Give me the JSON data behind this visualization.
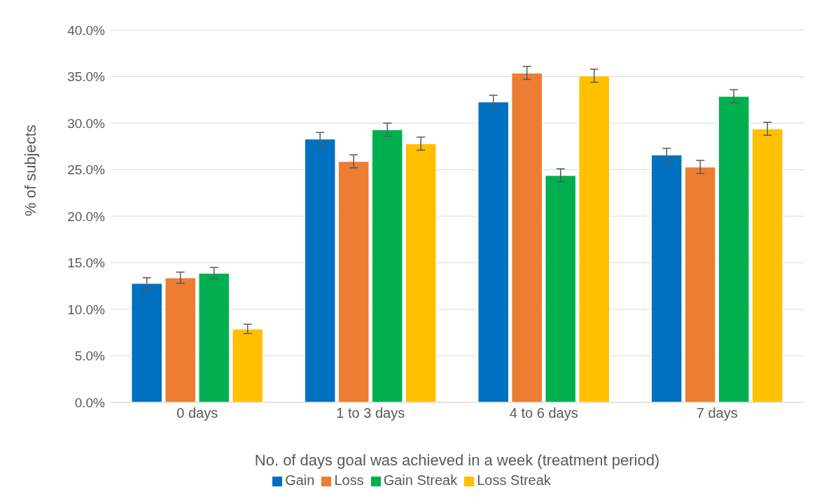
{
  "chart_data": {
    "type": "bar",
    "xlabel": "No. of days goal was achieved in a week  (treatment period)",
    "ylabel": "% of subjects",
    "categories": [
      "0 days",
      "1 to 3 days",
      "4 to 6 days",
      "7 days"
    ],
    "series": [
      {
        "name": "Gain",
        "color": "#0070c0",
        "values": [
          12.8,
          28.3,
          32.3,
          26.6
        ],
        "errors": [
          0.6,
          0.7,
          0.7,
          0.7
        ]
      },
      {
        "name": "Loss",
        "color": "#ed7d31",
        "values": [
          13.4,
          25.9,
          35.4,
          25.3
        ],
        "errors": [
          0.6,
          0.7,
          0.7,
          0.7
        ]
      },
      {
        "name": "Gain Streak",
        "color": "#00b050",
        "values": [
          13.9,
          29.3,
          24.4,
          32.9
        ],
        "errors": [
          0.6,
          0.7,
          0.7,
          0.7
        ]
      },
      {
        "name": "Loss Streak",
        "color": "#ffc000",
        "values": [
          7.9,
          27.8,
          35.1,
          29.4
        ],
        "errors": [
          0.5,
          0.7,
          0.7,
          0.7
        ]
      }
    ],
    "ylim": [
      0,
      40
    ],
    "yticks": [
      {
        "value": 0,
        "label": "0.0%"
      },
      {
        "value": 5,
        "label": "5.0%"
      },
      {
        "value": 10,
        "label": "10.0%"
      },
      {
        "value": 15,
        "label": "15.0%"
      },
      {
        "value": 20,
        "label": "20.0%"
      },
      {
        "value": 25,
        "label": "25.0%"
      },
      {
        "value": 30,
        "label": "30.0%"
      },
      {
        "value": 35,
        "label": "35.0%"
      },
      {
        "value": 40,
        "label": "40.0%"
      }
    ],
    "grid": "y",
    "legend": "bottom"
  }
}
